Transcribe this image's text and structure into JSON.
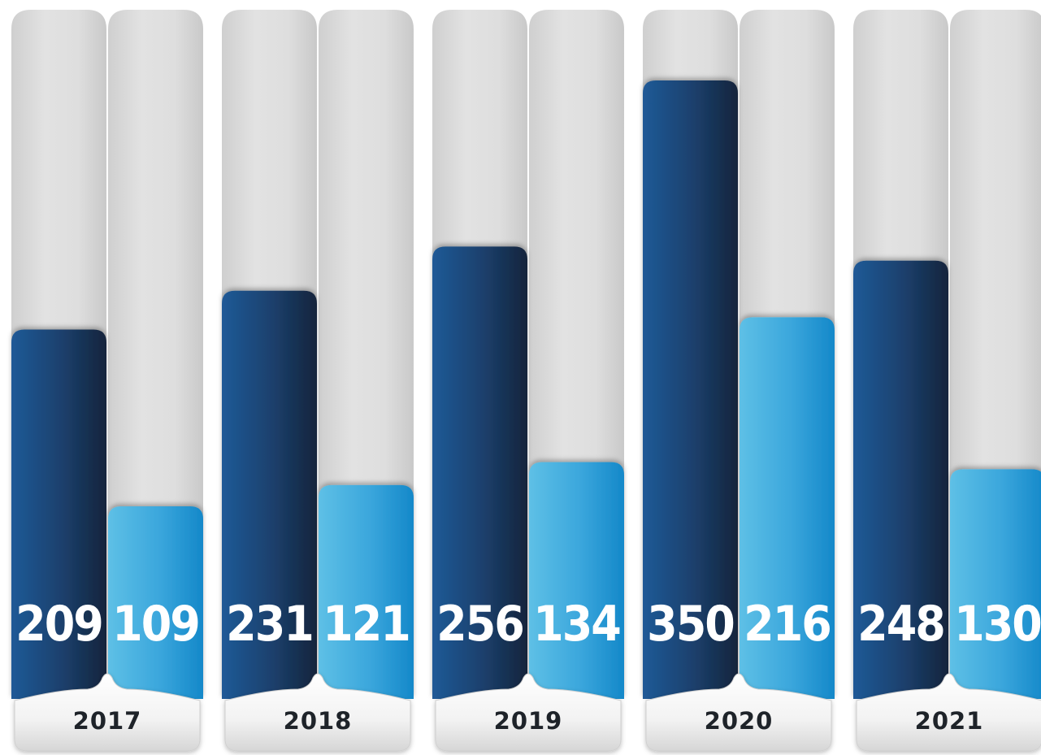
{
  "chart_data": {
    "type": "bar",
    "categories": [
      "2017",
      "2018",
      "2019",
      "2020",
      "2021"
    ],
    "series": [
      {
        "values": [
          209,
          231,
          256,
          350,
          248
        ],
        "color": "#1d4f86"
      },
      {
        "values": [
          109,
          121,
          134,
          216,
          130
        ],
        "color": "#3aa8dc"
      }
    ],
    "ylim": [
      0,
      390
    ],
    "grid": false,
    "legend": "none"
  }
}
